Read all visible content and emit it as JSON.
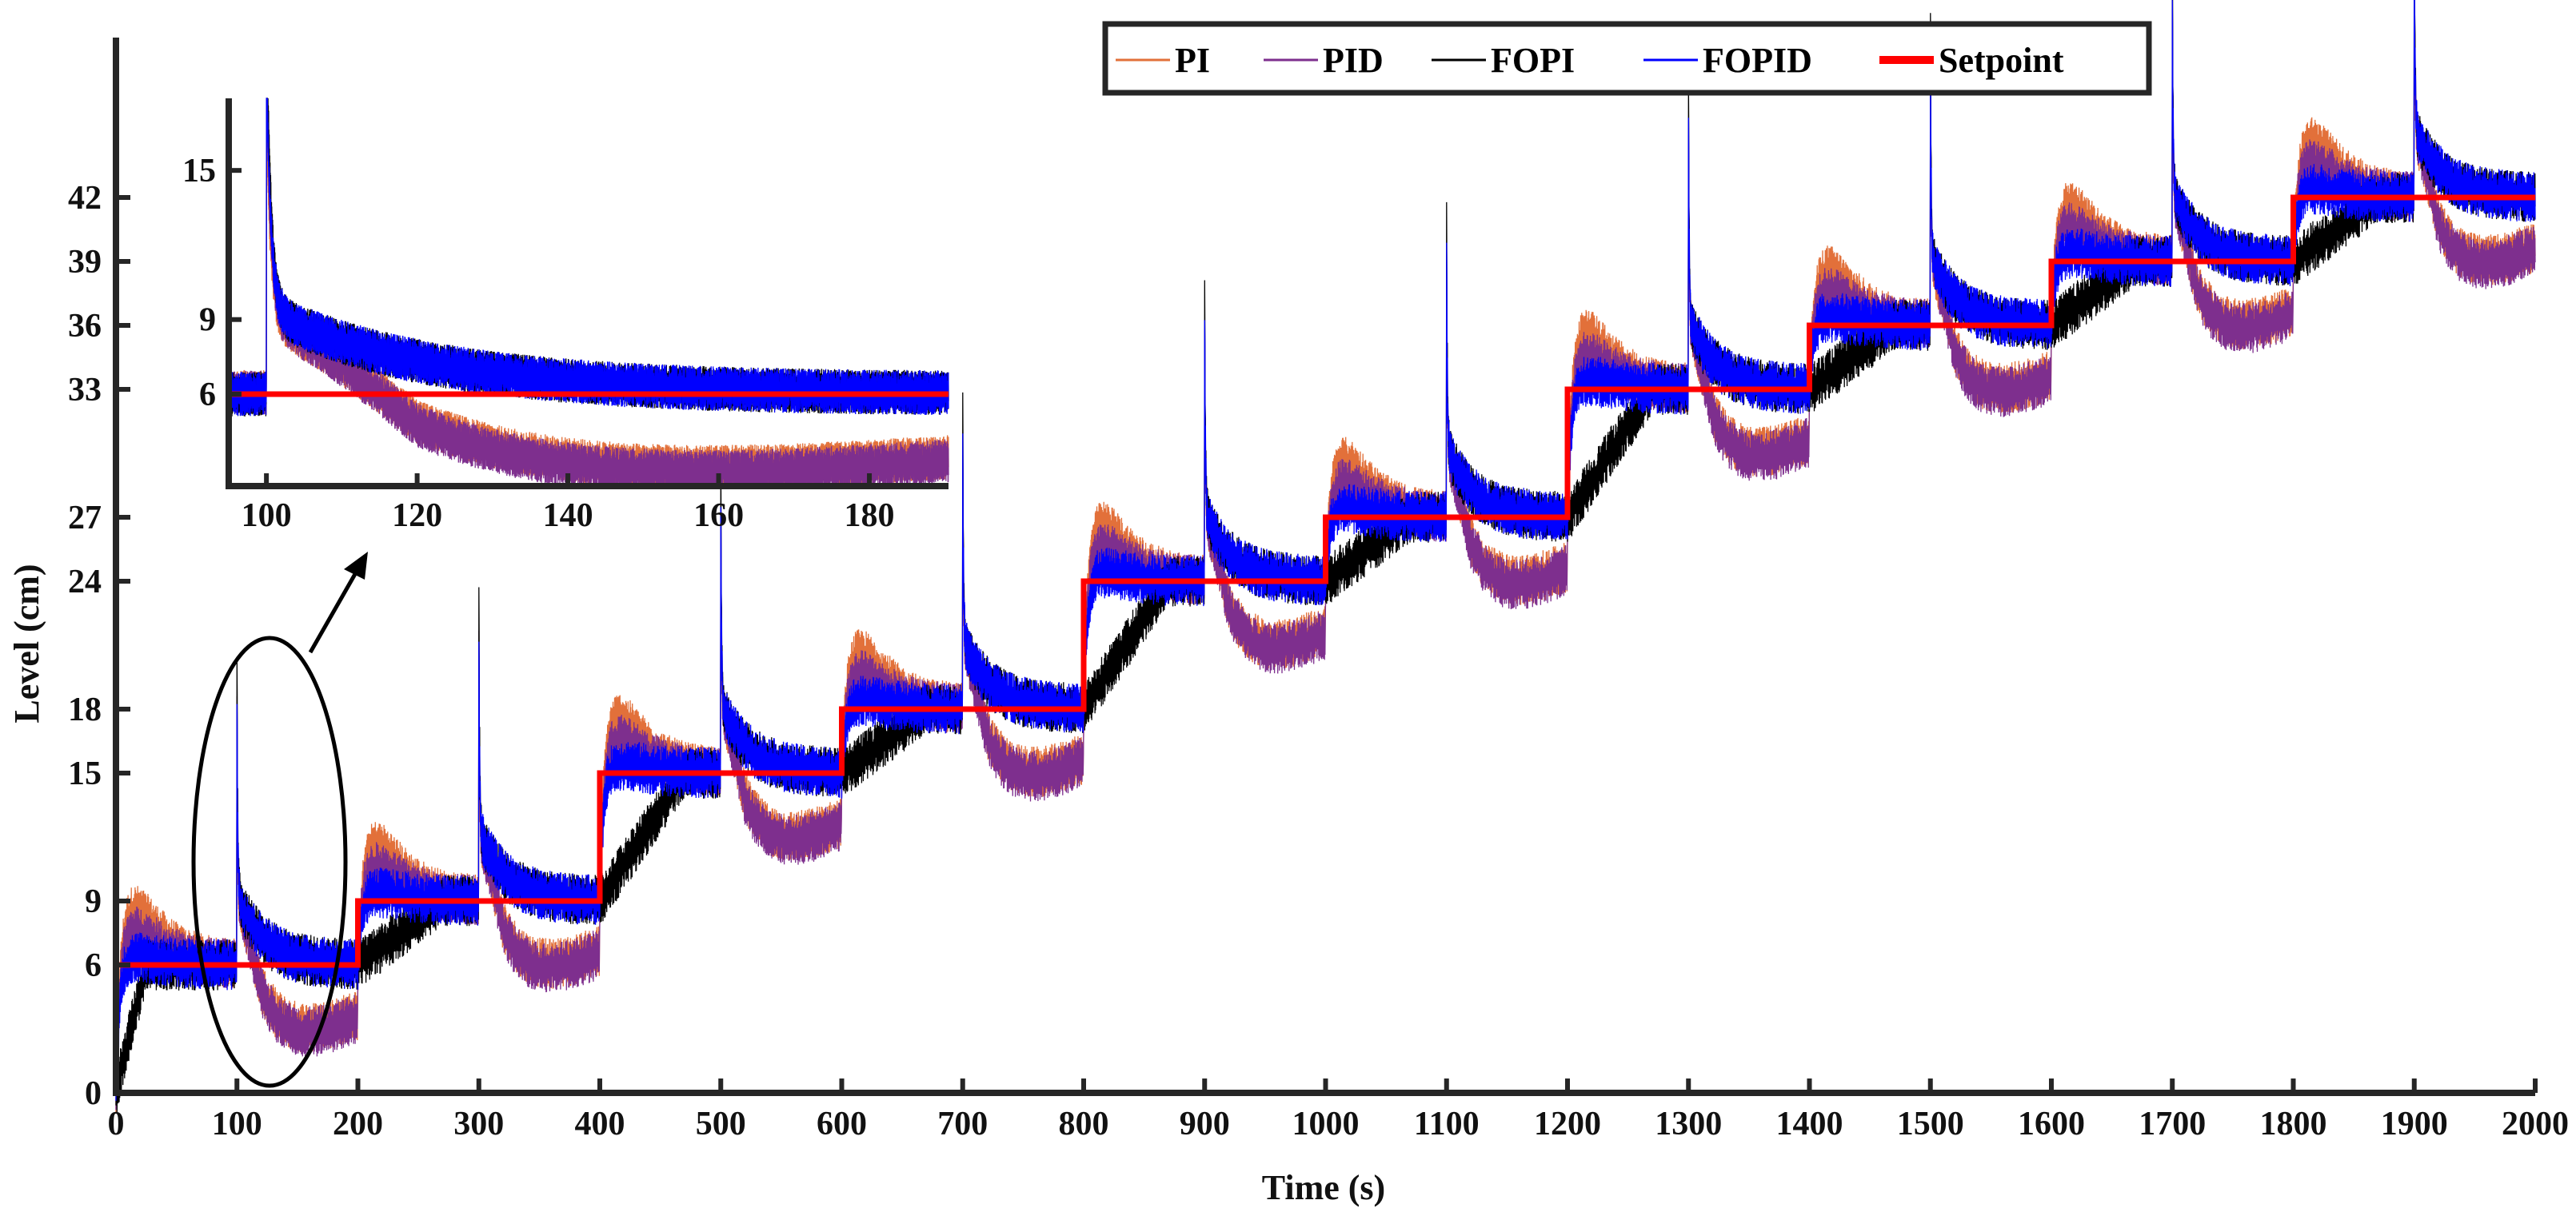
{
  "chart_data": {
    "type": "line",
    "xlabel": "Time (s)",
    "ylabel": "Level (cm)",
    "xlim": [
      0,
      2000
    ],
    "ylim": [
      0,
      49.5
    ],
    "xticks": [
      0,
      100,
      200,
      300,
      400,
      500,
      600,
      700,
      800,
      900,
      1000,
      1100,
      1200,
      1300,
      1400,
      1500,
      1600,
      1700,
      1800,
      1900,
      2000
    ],
    "yticks": [
      0,
      6,
      9,
      15,
      18,
      24,
      27,
      33,
      36,
      39,
      42
    ],
    "grid": false,
    "legend_placement": "top-center",
    "series": [
      {
        "name": "PI",
        "color": "#E2703A"
      },
      {
        "name": "PID",
        "color": "#7E2F8E"
      },
      {
        "name": "FOPI",
        "color": "#000000"
      },
      {
        "name": "FOPID",
        "color": "#0000FF"
      },
      {
        "name": "Setpoint",
        "color": "#FF0000"
      }
    ],
    "setpoint_steps": [
      {
        "start": 0,
        "end": 200,
        "value": 6
      },
      {
        "start": 200,
        "end": 400,
        "value": 9
      },
      {
        "start": 400,
        "end": 600,
        "value": 15
      },
      {
        "start": 600,
        "end": 800,
        "value": 18
      },
      {
        "start": 800,
        "end": 1000,
        "value": 24
      },
      {
        "start": 1000,
        "end": 1200,
        "value": 27
      },
      {
        "start": 1200,
        "end": 1400,
        "value": 33
      },
      {
        "start": 1400,
        "end": 1600,
        "value": 36
      },
      {
        "start": 1600,
        "end": 1800,
        "value": 39
      },
      {
        "start": 1800,
        "end": 2000,
        "value": 42
      }
    ],
    "disturbance_times": [
      100,
      300,
      500,
      700,
      900,
      1100,
      1300,
      1500,
      1700,
      1900
    ],
    "inset": {
      "xlim": [
        95,
        190.5
      ],
      "ylim": [
        2.3,
        17.9
      ],
      "xticks": [
        100,
        120,
        140,
        160,
        180
      ],
      "yticks": [
        6,
        9,
        15
      ]
    }
  }
}
